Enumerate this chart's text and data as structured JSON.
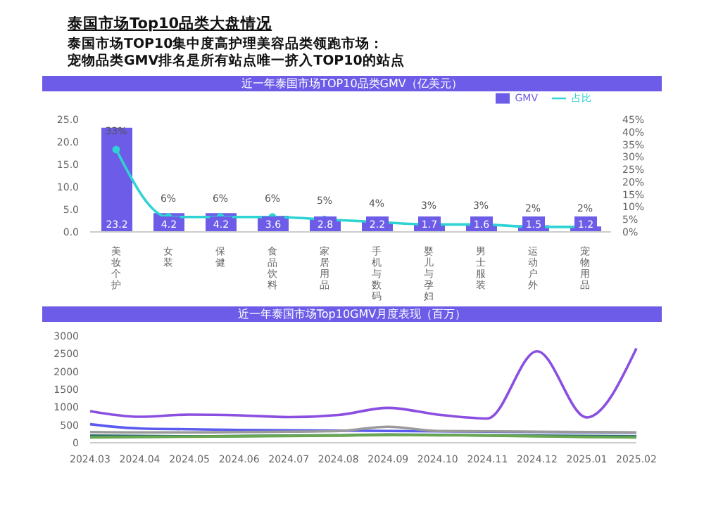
{
  "chart_data": [
    {
      "type": "bar",
      "title": "近一年泰国市场TOP10品类GMV（亿美元）",
      "annotations": [
        "泰国市场Top10品类大盘情况",
        "泰国市场TOP10集中度高护理美容品类领跑市场：",
        "宠物品类GMV排名是所有站点唯一挤入TOP10的站点"
      ],
      "categories": [
        "美妆个护",
        "女装",
        "保健",
        "食品饮料",
        "家居用品",
        "手机与数码",
        "婴儿与孕妇",
        "男士服装",
        "运动户外",
        "宠物用品"
      ],
      "series": [
        {
          "name": "GMV",
          "color": "#6c5ce7",
          "values": [
            23.2,
            4.2,
            4.2,
            3.6,
            2.8,
            2.2,
            1.7,
            1.6,
            1.5,
            1.2
          ]
        },
        {
          "name": "占比",
          "type": "line",
          "axis": "y2",
          "color": "#2fd3d3",
          "values": [
            33,
            6,
            6,
            6,
            5,
            4,
            3,
            3,
            2,
            2
          ],
          "value_labels": [
            "33%",
            "6%",
            "6%",
            "6%",
            "5%",
            "4%",
            "3%",
            "3%",
            "2%",
            "2%"
          ]
        }
      ],
      "ylim": [
        0,
        25
      ],
      "yticks": [
        {
          "value": 0,
          "label": "0.0"
        },
        {
          "value": 5,
          "label": "5.0"
        },
        {
          "value": 10,
          "label": "10.0"
        },
        {
          "value": 15,
          "label": "15.0"
        },
        {
          "value": 20,
          "label": "20.0"
        },
        {
          "value": 25,
          "label": "25.0"
        }
      ],
      "y2lim": [
        0,
        45
      ],
      "y2ticks": [
        {
          "value": 0,
          "label": "0%"
        },
        {
          "value": 5,
          "label": "5%"
        },
        {
          "value": 10,
          "label": "10%"
        },
        {
          "value": 15,
          "label": "15%"
        },
        {
          "value": 20,
          "label": "20%"
        },
        {
          "value": 25,
          "label": "25%"
        },
        {
          "value": 30,
          "label": "30%"
        },
        {
          "value": 35,
          "label": "35%"
        },
        {
          "value": 40,
          "label": "40%"
        },
        {
          "value": 45,
          "label": "45%"
        }
      ],
      "data_labels": true,
      "legend": "top right",
      "marker": "circle"
    },
    {
      "type": "line",
      "title": "近一年泰国市场Top10GMV月度表现（百万）",
      "categories": [
        "2024.03",
        "2024.04",
        "2024.05",
        "2024.06",
        "2024.07",
        "2024.08",
        "2024.09",
        "2024.10",
        "2024.11",
        "2024.12",
        "2025.01",
        "2025.02"
      ],
      "series": [
        {
          "color": "#8a4fe0",
          "values": [
            890,
            730,
            790,
            770,
            720,
            780,
            980,
            790,
            680,
            2570,
            710,
            2650
          ]
        },
        {
          "color": "#5b5bf0",
          "values": [
            520,
            400,
            380,
            360,
            350,
            340,
            330,
            320,
            310,
            300,
            290,
            280
          ]
        },
        {
          "color": "#9a9a9a",
          "values": [
            300,
            290,
            290,
            300,
            310,
            330,
            450,
            330,
            320,
            310,
            300,
            290
          ]
        },
        {
          "color": "#2f6f6f",
          "values": [
            200,
            190,
            180,
            190,
            200,
            210,
            230,
            220,
            210,
            200,
            190,
            180
          ]
        },
        {
          "color": "#6aa84f",
          "values": [
            150,
            160,
            170,
            180,
            190,
            200,
            220,
            210,
            200,
            180,
            160,
            150
          ]
        }
      ],
      "ylim": [
        0,
        3000
      ],
      "yticks": [
        0,
        500,
        1000,
        1500,
        2000,
        2500,
        3000
      ],
      "marker": "none"
    }
  ]
}
